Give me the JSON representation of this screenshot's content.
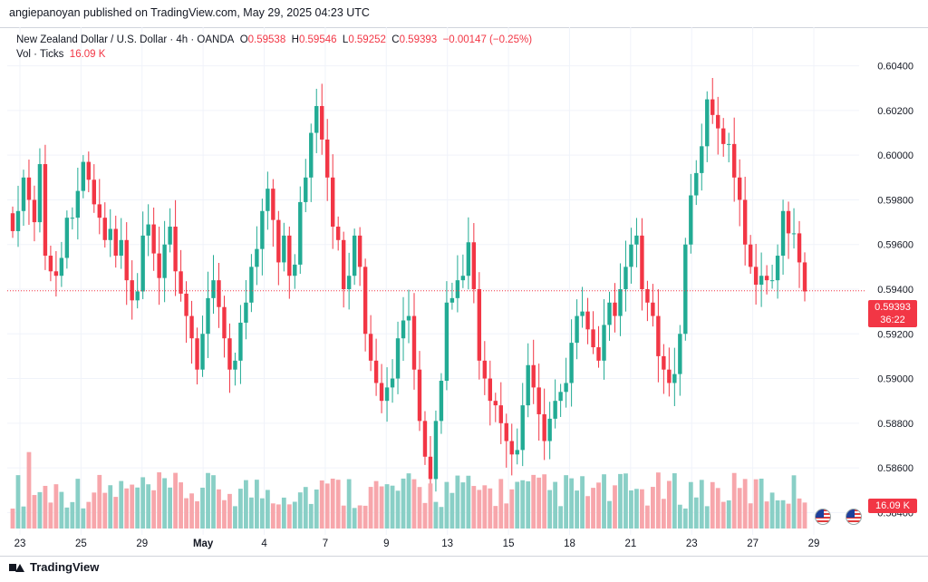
{
  "header": {
    "published": "angiepanoyan published on TradingView.com, May 29, 2025 04:23 UTC"
  },
  "legend": {
    "symbol": "New Zealand Dollar / U.S. Dollar · 4h · OANDA",
    "o_label": "O",
    "o_value": "0.59538",
    "h_label": "H",
    "h_value": "0.59546",
    "l_label": "L",
    "l_value": "0.59252",
    "c_label": "C",
    "c_value": "0.59393",
    "change": "−0.00147 (−0.25%)",
    "vol_label": "Vol · Ticks",
    "vol_value": "16.09 K"
  },
  "price_tag": {
    "price": "0.59393",
    "countdown": "36:22"
  },
  "volume_tag": "16.09 K",
  "footer": {
    "brand": "TradingView"
  },
  "colors": {
    "up": "#22ab94",
    "down": "#f23645",
    "up_vol": "#89cfc6",
    "down_vol": "#f7a6ab",
    "grid": "#f0f3fa"
  },
  "icons": [
    "tradingview-logo-icon",
    "us-flag-icon"
  ],
  "chart_data": {
    "type": "candlestick",
    "y_axis": {
      "ticks": [
        "0.60400",
        "0.60200",
        "0.60000",
        "0.59800",
        "0.59600",
        "0.59400",
        "0.59200",
        "0.59000",
        "0.58800",
        "0.58600",
        "0.58400"
      ],
      "range": [
        0.583,
        0.605
      ]
    },
    "x_axis": {
      "ticks": [
        "23",
        "25",
        "29",
        "May",
        "4",
        "7",
        "9",
        "13",
        "15",
        "18",
        "21",
        "23",
        "27",
        "29"
      ]
    },
    "last_price": 0.59393,
    "closes": [
      0.5966,
      0.5975,
      0.599,
      0.598,
      0.597,
      0.5996,
      0.5955,
      0.5948,
      0.5946,
      0.5954,
      0.5972,
      0.5972,
      0.5984,
      0.5997,
      0.5989,
      0.5978,
      0.5972,
      0.5962,
      0.5967,
      0.5955,
      0.5962,
      0.5944,
      0.5935,
      0.5939,
      0.5964,
      0.5969,
      0.5956,
      0.5945,
      0.596,
      0.5968,
      0.5948,
      0.5938,
      0.5928,
      0.5918,
      0.5904,
      0.592,
      0.5936,
      0.5944,
      0.5932,
      0.5918,
      0.5904,
      0.5908,
      0.5925,
      0.5934,
      0.595,
      0.5958,
      0.5975,
      0.5985,
      0.5971,
      0.5952,
      0.5964,
      0.5946,
      0.5951,
      0.5979,
      0.599,
      0.601,
      0.6022,
      0.6007,
      0.599,
      0.5968,
      0.5962,
      0.594,
      0.5946,
      0.5964,
      0.595,
      0.592,
      0.5908,
      0.5898,
      0.589,
      0.5896,
      0.59,
      0.5918,
      0.5926,
      0.5928,
      0.5904,
      0.5881,
      0.5865,
      0.5855,
      0.5881,
      0.5899,
      0.5934,
      0.5936,
      0.5944,
      0.5946,
      0.5961,
      0.594,
      0.5908,
      0.59,
      0.589,
      0.5888,
      0.588,
      0.5872,
      0.5866,
      0.5868,
      0.5888,
      0.5906,
      0.5896,
      0.5884,
      0.5872,
      0.5882,
      0.589,
      0.5894,
      0.5898,
      0.5916,
      0.5928,
      0.593,
      0.5922,
      0.5914,
      0.5908,
      0.5924,
      0.5934,
      0.5928,
      0.594,
      0.595,
      0.596,
      0.5964,
      0.594,
      0.5934,
      0.5928,
      0.591,
      0.5904,
      0.5898,
      0.5902,
      0.592,
      0.596,
      0.5982,
      0.5992,
      0.6004,
      0.6025,
      0.6018,
      0.6012,
      0.6005,
      0.6005,
      0.599,
      0.598,
      0.596,
      0.595,
      0.5942,
      0.5946,
      0.5944,
      0.5944,
      0.5955,
      0.5975,
      0.5965,
      0.5965,
      0.5952,
      0.5939
    ],
    "volume_approx": {
      "note": "relative tick volume bars, up/down colored",
      "last": "16.09 K"
    }
  }
}
